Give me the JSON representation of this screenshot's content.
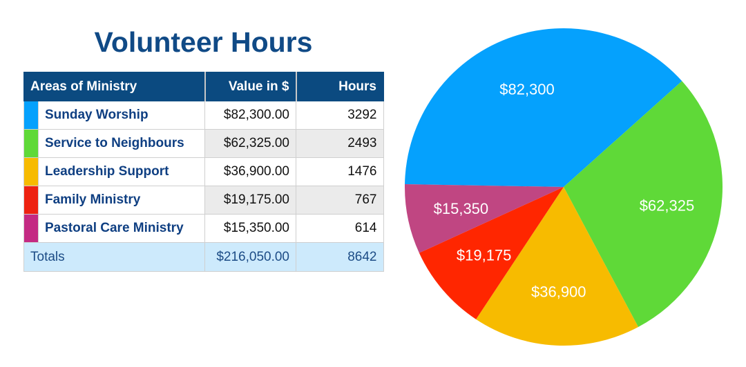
{
  "chart_data": {
    "type": "pie",
    "title": "Volunteer Hours",
    "table": {
      "headers": [
        "Areas of Ministry",
        "Value in $",
        "Hours"
      ],
      "rows": [
        {
          "name": "Sunday Worship",
          "value": "$82,300.00",
          "hours": "3292",
          "color": "#05a1fd"
        },
        {
          "name": "Service to Neighbours",
          "value": "$62,325.00",
          "hours": "2493",
          "color": "#5fd938"
        },
        {
          "name": "Leadership Support",
          "value": "$36,900.00",
          "hours": "1476",
          "color": "#f7bb00"
        },
        {
          "name": "Family Ministry",
          "value": "$19,175.00",
          "hours": "767",
          "color": "#ee2211"
        },
        {
          "name": "Pastoral Care Ministry",
          "value": "$15,350.00",
          "hours": "614",
          "color": "#c42a83"
        }
      ],
      "totals": {
        "label": "Totals",
        "value": "$216,050.00",
        "hours": "8642"
      }
    },
    "slices": [
      {
        "label": "$82,300",
        "value": 82300,
        "color": "#05a1fd"
      },
      {
        "label": "$62,325",
        "value": 62325,
        "color": "#5fd938"
      },
      {
        "label": "$36,900",
        "value": 36900,
        "color": "#f7bb00"
      },
      {
        "label": "$19,175",
        "value": 19175,
        "color": "#ff2600"
      },
      {
        "label": "$15,350",
        "value": 15350,
        "color": "#c04682"
      }
    ]
  }
}
